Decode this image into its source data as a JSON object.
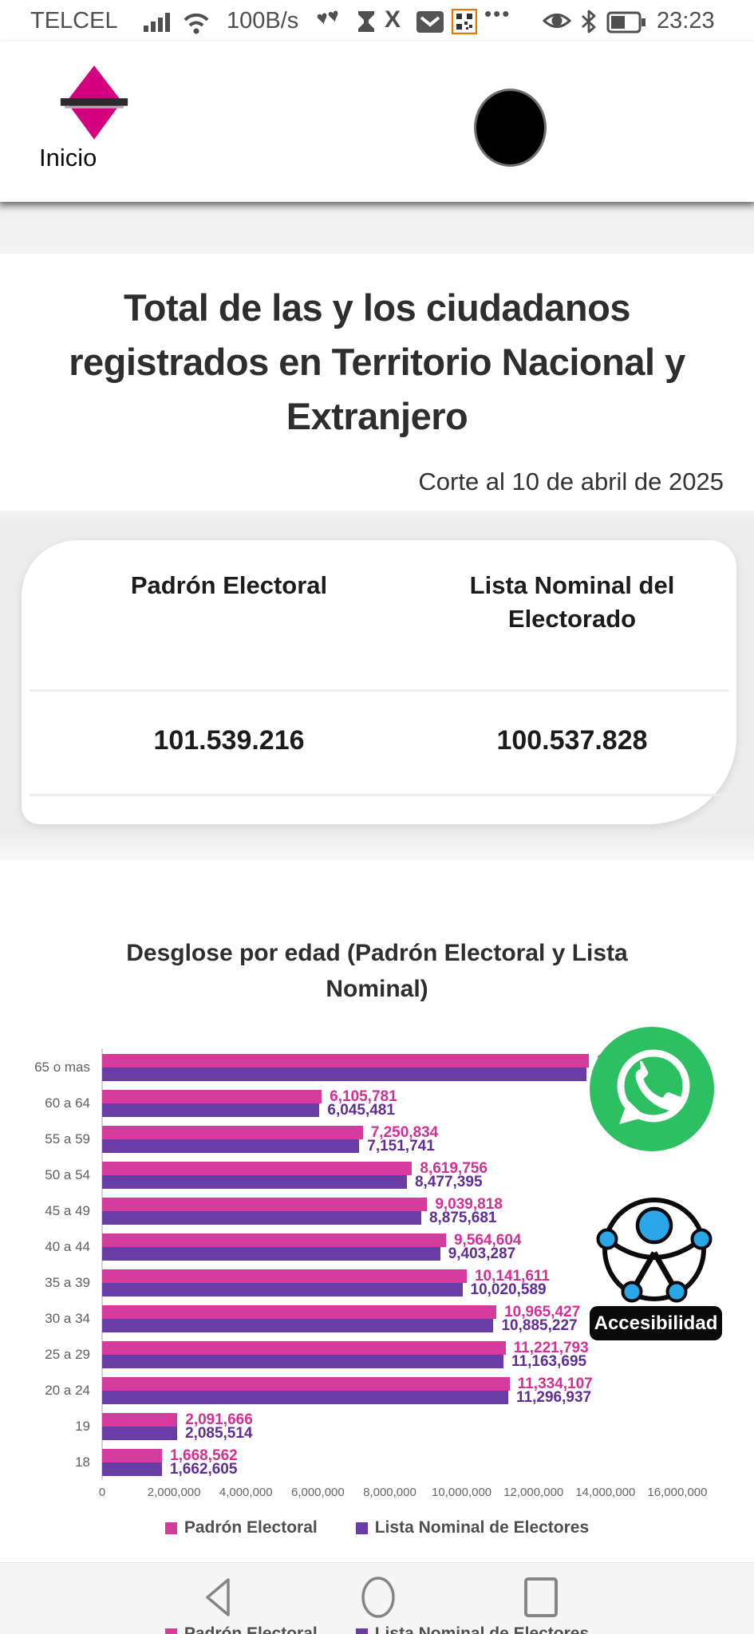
{
  "status_bar": {
    "carrier": "TELCEL",
    "network_speed": "100B/s",
    "time": "23:23",
    "more_dots": "•••",
    "icons": [
      "signal-bars",
      "wifi",
      "health-hearts",
      "hourglass",
      "x-app",
      "mail",
      "qr-code",
      "more-dots",
      "eye-comfort",
      "bluetooth",
      "battery"
    ]
  },
  "header": {
    "home_label": "Inicio",
    "logo": "ine-ballot-logo"
  },
  "summary": {
    "title": "Total de las y los ciudadanos registrados en Territorio Nacional y Extranjero",
    "cutoff": "Corte al 10 de abril de 2025",
    "table": {
      "columns": [
        "Padrón Electoral",
        "Lista Nominal del Electorado"
      ],
      "values": [
        "101.539.216",
        "100.537.828"
      ]
    }
  },
  "chart_data": {
    "type": "bar",
    "orientation": "horizontal",
    "title": "Desglose por edad (Padrón Electoral y Lista Nominal)",
    "categories": [
      "65 o mas",
      "60 a 64",
      "55 a 59",
      "50 a 54",
      "45 a 49",
      "40 a 44",
      "35 a 39",
      "30 a 34",
      "25 a 29",
      "20 a 24",
      "19",
      "18"
    ],
    "series": [
      {
        "name": "Padrón Electoral",
        "color": "#d63a9d",
        "label_color": "#d62e93",
        "values": [
          13535257,
          6105781,
          7250834,
          8619756,
          9039818,
          9564604,
          10141611,
          10965427,
          11221793,
          11334107,
          2091666,
          1668562
        ],
        "labels": [
          "13,535,257",
          "6,105,781",
          "7,250,834",
          "8,619,756",
          "9,039,818",
          "9,564,604",
          "10,141,611",
          "10,965,427",
          "11,221,793",
          "11,334,107",
          "2,091,666",
          "1,668,562"
        ]
      },
      {
        "name": "Lista Nominal de Electores",
        "color": "#6a3da6",
        "label_color": "#5e2d96",
        "values": [
          13469676,
          6045481,
          7151741,
          8477395,
          8875681,
          9403287,
          10020589,
          10885227,
          11163695,
          11296937,
          2085514,
          1662605
        ],
        "labels": [
          "13,469,676",
          "6,045,481",
          "7,151,741",
          "8,477,395",
          "8,875,681",
          "9,403,287",
          "10,020,589",
          "10,885,227",
          "11,163,695",
          "11,296,937",
          "2,085,514",
          "1,662,605"
        ]
      }
    ],
    "x_ticks": [
      "0",
      "2,000,000",
      "4,000,000",
      "6,000,000",
      "8,000,000",
      "10,000,000",
      "12,000,000",
      "14,000,000",
      "16,000,000"
    ],
    "x_max": 16000000,
    "grid": false,
    "legend_position": "bottom"
  },
  "overlays": {
    "whatsapp": "whatsapp-share-button",
    "accessibility_label": "Accesibilidad"
  },
  "nav_bar": {
    "icons": [
      "back",
      "home",
      "recents"
    ]
  },
  "colors": {
    "brand_magenta": "#d5007f",
    "padron_pink": "#d63a9d",
    "nominal_purple": "#6a3da6",
    "whatsapp_green": "#2CC063",
    "accessibility_blue": "#2BA6E9"
  }
}
